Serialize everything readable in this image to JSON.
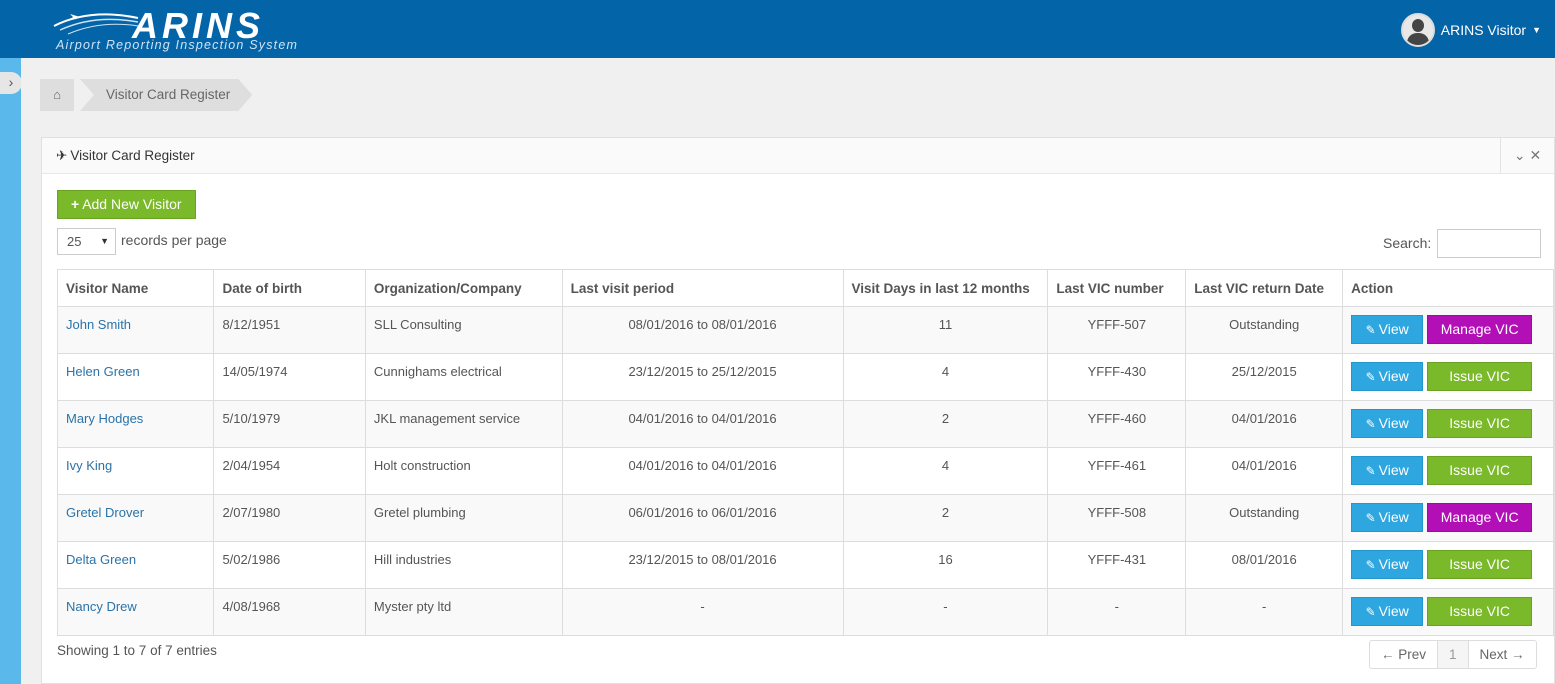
{
  "header": {
    "logo_title": "ARINS",
    "logo_subtitle": "Airport Reporting Inspection System",
    "user_name": "ARINS Visitor"
  },
  "breadcrumb": {
    "home_icon": "home-icon",
    "current": "Visitor Card Register"
  },
  "panel": {
    "title": "Visitor Card Register",
    "add_button": "Add New Visitor",
    "per_page_value": "25",
    "per_page_label": "records per page",
    "search_label": "Search:",
    "search_value": ""
  },
  "table": {
    "columns": [
      "Visitor Name",
      "Date of birth",
      "Organization/Company",
      "Last visit period",
      "Visit Days in last 12 months",
      "Last VIC number",
      "Last VIC return Date",
      "Action"
    ],
    "rows": [
      {
        "name": "John Smith",
        "dob": "8/12/1951",
        "org": "SLL Consulting",
        "period": "08/01/2016 to 08/01/2016",
        "days": "11",
        "vic": "YFFF-507",
        "return": "Outstanding",
        "view": "View",
        "action": "Manage VIC",
        "action_type": "manage"
      },
      {
        "name": "Helen Green",
        "dob": "14/05/1974",
        "org": "Cunnighams electrical",
        "period": "23/12/2015 to 25/12/2015",
        "days": "4",
        "vic": "YFFF-430",
        "return": "25/12/2015",
        "view": "View",
        "action": "Issue VIC",
        "action_type": "issue"
      },
      {
        "name": "Mary Hodges",
        "dob": "5/10/1979",
        "org": "JKL management service",
        "period": "04/01/2016 to 04/01/2016",
        "days": "2",
        "vic": "YFFF-460",
        "return": "04/01/2016",
        "view": "View",
        "action": "Issue VIC",
        "action_type": "issue"
      },
      {
        "name": "Ivy King",
        "dob": "2/04/1954",
        "org": "Holt construction",
        "period": "04/01/2016 to 04/01/2016",
        "days": "4",
        "vic": "YFFF-461",
        "return": "04/01/2016",
        "view": "View",
        "action": "Issue VIC",
        "action_type": "issue"
      },
      {
        "name": "Gretel Drover",
        "dob": "2/07/1980",
        "org": "Gretel plumbing",
        "period": "06/01/2016 to 06/01/2016",
        "days": "2",
        "vic": "YFFF-508",
        "return": "Outstanding",
        "view": "View",
        "action": "Manage VIC",
        "action_type": "manage"
      },
      {
        "name": "Delta Green",
        "dob": "5/02/1986",
        "org": "Hill industries",
        "period": "23/12/2015 to 08/01/2016",
        "days": "16",
        "vic": "YFFF-431",
        "return": "08/01/2016",
        "view": "View",
        "action": "Issue VIC",
        "action_type": "issue"
      },
      {
        "name": "Nancy Drew",
        "dob": "4/08/1968",
        "org": "Myster pty ltd",
        "period": "-",
        "days": "-",
        "vic": "-",
        "return": "-",
        "view": "View",
        "action": "Issue VIC",
        "action_type": "issue"
      }
    ]
  },
  "footer": {
    "showing": "Showing 1 to 7 of 7 entries",
    "prev": "← Prev",
    "page": "1",
    "next": "Next →"
  },
  "colors": {
    "header": "#0464a8",
    "view": "#2ea6e0",
    "manage": "#b20fb6",
    "issue": "#7ab929"
  }
}
